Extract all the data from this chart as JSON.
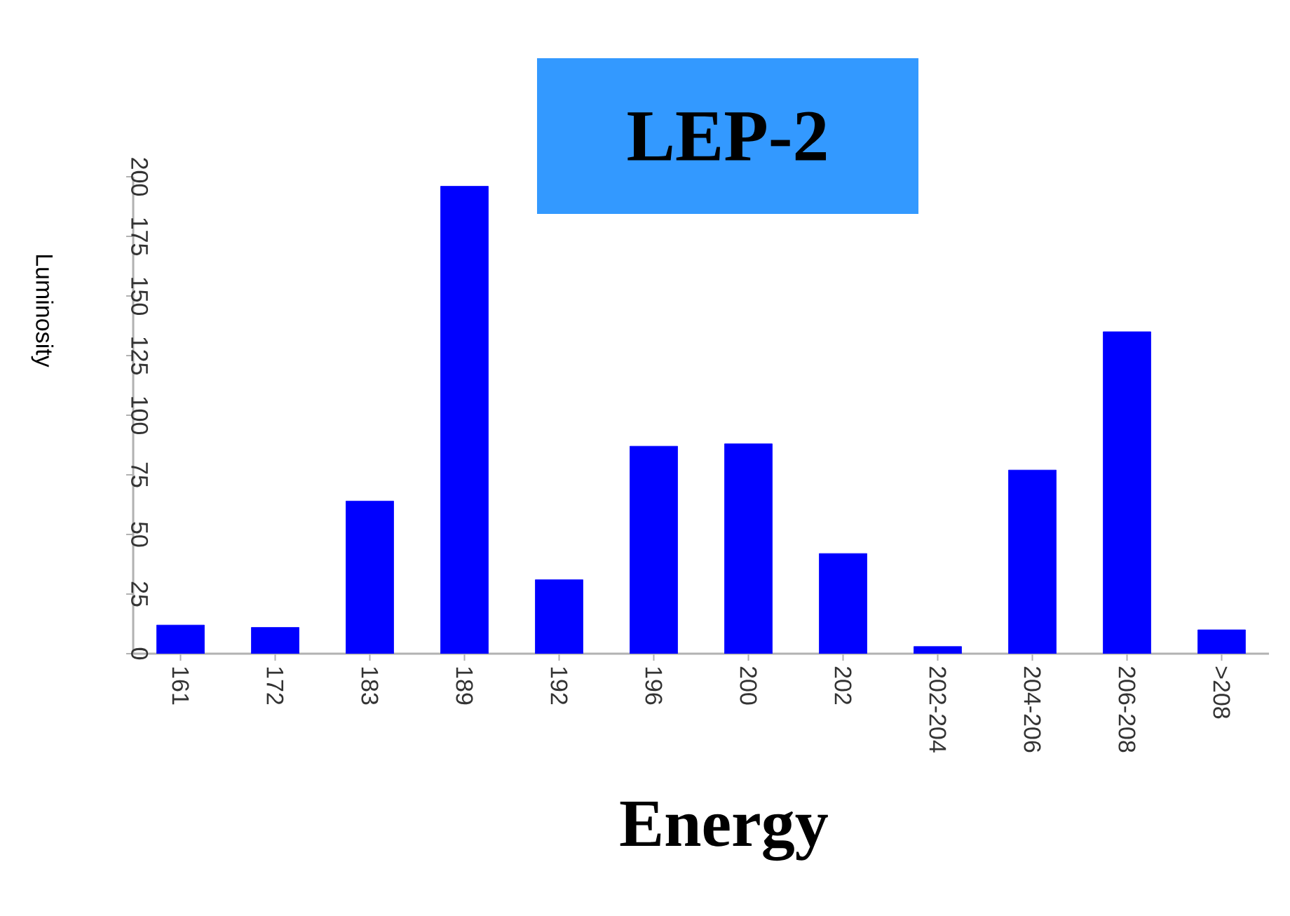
{
  "chart_data": {
    "type": "bar",
    "title": "LEP-2",
    "xlabel": "Energy",
    "ylabel": "Luminosity",
    "categories": [
      "161",
      "172",
      "183",
      "189",
      "192",
      "196",
      "200",
      "202",
      "202-204",
      "204-206",
      "206-208",
      ">208"
    ],
    "values": [
      12,
      11,
      64,
      196,
      31,
      87,
      88,
      42,
      3,
      77,
      135,
      10
    ],
    "color": "#0000ff",
    "ylim": [
      0,
      200
    ],
    "yticks": [
      0,
      25,
      50,
      75,
      100,
      125,
      150,
      175,
      200
    ],
    "grid": false
  }
}
